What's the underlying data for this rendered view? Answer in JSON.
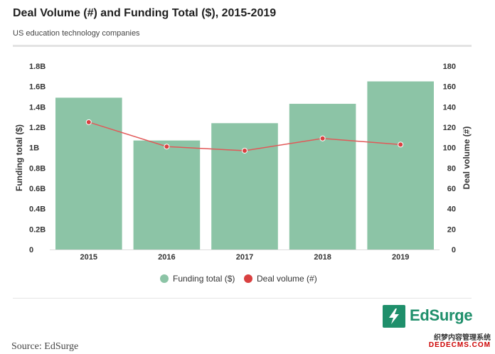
{
  "header": {
    "title": "Deal Volume (#) and Funding Total ($), 2015-2019",
    "subtitle": "US education technology companies"
  },
  "chart_data": {
    "type": "bar",
    "categories": [
      "2015",
      "2016",
      "2017",
      "2018",
      "2019"
    ],
    "series": [
      {
        "name": "Funding total ($)",
        "type": "bar",
        "axis": "left",
        "values": [
          1.49,
          1.07,
          1.24,
          1.43,
          1.65
        ]
      },
      {
        "name": "Deal volume (#)",
        "type": "line",
        "axis": "right",
        "values": [
          125,
          101,
          97,
          109,
          103
        ]
      }
    ],
    "ylabel": "Funding total ($)",
    "ylabel_right": "Deal volume (#)",
    "ylim": [
      0,
      1.8
    ],
    "ylim_right": [
      0,
      180
    ],
    "yticks": [
      "0",
      "0.2B",
      "0.4B",
      "0.6B",
      "0.8B",
      "1B",
      "1.2B",
      "1.4B",
      "1.6B",
      "1.8B"
    ],
    "yticks_right": [
      "0",
      "20",
      "40",
      "60",
      "80",
      "100",
      "120",
      "140",
      "160",
      "180"
    ],
    "grid": false,
    "legend": "bottom",
    "colors": {
      "bar": "#8cc4a6",
      "line": "#e25858",
      "point": "#d94040"
    }
  },
  "logo": {
    "text": "EdSurge"
  },
  "source": "Source: EdSurge",
  "watermark": {
    "line1": "织梦内容管理系统",
    "line2": "DEDECMS.COM"
  }
}
